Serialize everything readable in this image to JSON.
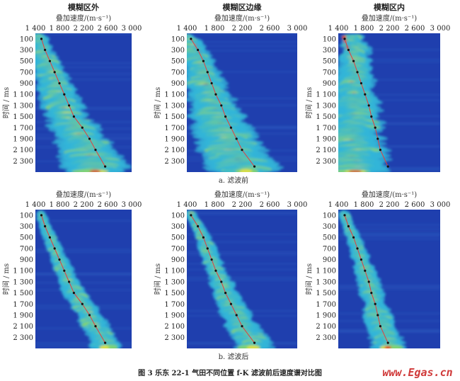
{
  "figure_caption": "图 3  乐东 22-1 气田不同位置 f-K 滤波前后速度谱对比图",
  "watermark": "www.Egas.cn",
  "row_captions": [
    "a. 滤波前",
    "b. 滤波后"
  ],
  "column_titles": [
    "模糊区外",
    "模糊区边缘",
    "模糊区内"
  ],
  "colors": {
    "background": "#1f3fae",
    "low": "#33b6d8",
    "mid": "#e8e040",
    "high": "#e03020",
    "pick_line": "#e04040",
    "pick_dot": "#111111"
  },
  "chart_data": [
    {
      "type": "heatmap",
      "row": "a. 滤波前",
      "title": "模糊区外",
      "xlabel": "叠加速度/(m·s⁻¹)",
      "ylabel": "时间 / ms",
      "xlim": [
        1400,
        3000
      ],
      "ylim": [
        2500,
        0
      ],
      "xticks": [
        "1 400",
        "1 800",
        "2 200",
        "2 600",
        "3 000"
      ],
      "yticks": [
        "100",
        "300",
        "500",
        "700",
        "900",
        "1 100",
        "1 300",
        "1 500",
        "1 700",
        "1 900",
        "2 100",
        "2 300"
      ],
      "picks": {
        "time": [
          100,
          300,
          500,
          700,
          900,
          1100,
          1300,
          1500,
          1700,
          1900,
          2100,
          2400
        ],
        "velocity": [
          1500,
          1560,
          1640,
          1720,
          1800,
          1880,
          1960,
          2040,
          2180,
          2300,
          2400,
          2560
        ]
      }
    },
    {
      "type": "heatmap",
      "row": "a. 滤波前",
      "title": "模糊区边缘",
      "xlabel": "叠加速度/(m·s⁻¹)",
      "ylabel": "时间 / ms",
      "xlim": [
        1400,
        3000
      ],
      "ylim": [
        2500,
        0
      ],
      "xticks": [
        "1 400",
        "1 800",
        "2 200",
        "2 600",
        "3 000"
      ],
      "yticks": [
        "100",
        "300",
        "500",
        "700",
        "900",
        "1 100",
        "1 300",
        "1 500",
        "1 700",
        "1 900",
        "2 100",
        "2 300"
      ],
      "picks": {
        "time": [
          100,
          300,
          500,
          700,
          900,
          1100,
          1300,
          1500,
          1700,
          1900,
          2100,
          2400
        ],
        "velocity": [
          1460,
          1560,
          1640,
          1700,
          1760,
          1820,
          1900,
          1960,
          2040,
          2120,
          2200,
          2380
        ]
      }
    },
    {
      "type": "heatmap",
      "row": "a. 滤波前",
      "title": "模糊区内",
      "xlabel": "叠加速度/(m·s⁻¹)",
      "ylabel": "时间 / ms",
      "xlim": [
        1400,
        3000
      ],
      "ylim": [
        2500,
        0
      ],
      "xticks": [
        "1 400",
        "1 800",
        "2 200",
        "2 600",
        "3 000"
      ],
      "yticks": [
        "100",
        "300",
        "500",
        "700",
        "900",
        "1 100",
        "1 300",
        "1 500",
        "1 700",
        "1 900",
        "2 100",
        "2 300"
      ],
      "picks": {
        "time": [
          100,
          300,
          500,
          700,
          900,
          1100,
          1300,
          1500,
          1700,
          1900,
          2100,
          2400
        ],
        "velocity": [
          1500,
          1560,
          1640,
          1700,
          1760,
          1820,
          1880,
          1920,
          1980,
          2020,
          2060,
          2180
        ]
      }
    },
    {
      "type": "heatmap",
      "row": "b. 滤波后",
      "title": "",
      "xlabel": "叠加速度/(m·s⁻¹)",
      "ylabel": "时间 / ms",
      "xlim": [
        1400,
        3000
      ],
      "ylim": [
        2500,
        0
      ],
      "xticks": [
        "1 400",
        "1 800",
        "2 200",
        "2 600",
        "3 000"
      ],
      "yticks": [
        "100",
        "300",
        "500",
        "700",
        "900",
        "1 100",
        "1 300",
        "1 500",
        "1 700",
        "1 900",
        "2 100",
        "2 300"
      ],
      "picks": {
        "time": [
          100,
          300,
          500,
          700,
          900,
          1100,
          1300,
          1500,
          1700,
          1900,
          2100,
          2400
        ],
        "velocity": [
          1500,
          1560,
          1640,
          1720,
          1800,
          1880,
          1960,
          2040,
          2180,
          2300,
          2400,
          2560
        ]
      }
    },
    {
      "type": "heatmap",
      "row": "b. 滤波后",
      "title": "",
      "xlabel": "叠加速度/(m·s⁻¹)",
      "ylabel": "时间 / ms",
      "xlim": [
        1400,
        3000
      ],
      "ylim": [
        2500,
        0
      ],
      "xticks": [
        "1 400",
        "1 800",
        "2 200",
        "2 600",
        "3 000"
      ],
      "yticks": [
        "100",
        "300",
        "500",
        "700",
        "900",
        "1 100",
        "1 300",
        "1 500",
        "1 700",
        "1 900",
        "2 100",
        "2 300"
      ],
      "picks": {
        "time": [
          100,
          300,
          500,
          700,
          900,
          1100,
          1300,
          1500,
          1700,
          1900,
          2100,
          2400
        ],
        "velocity": [
          1460,
          1560,
          1640,
          1700,
          1760,
          1820,
          1900,
          1960,
          2040,
          2120,
          2200,
          2380
        ]
      }
    },
    {
      "type": "heatmap",
      "row": "b. 滤波后",
      "title": "",
      "xlabel": "叠加速度/(m·s⁻¹)",
      "ylabel": "时间 / ms",
      "xlim": [
        1400,
        3000
      ],
      "ylim": [
        2500,
        0
      ],
      "xticks": [
        "1 400",
        "1 800",
        "2 200",
        "2 600",
        "3 000"
      ],
      "yticks": [
        "100",
        "300",
        "500",
        "700",
        "900",
        "1 100",
        "1 300",
        "1 500",
        "1 700",
        "1 900",
        "2 100",
        "2 300"
      ],
      "picks": {
        "time": [
          100,
          300,
          500,
          700,
          900,
          1100,
          1300,
          1500,
          1700,
          1900,
          2100,
          2400
        ],
        "velocity": [
          1500,
          1560,
          1640,
          1700,
          1760,
          1820,
          1880,
          1920,
          1980,
          2020,
          2060,
          2180
        ]
      }
    }
  ]
}
